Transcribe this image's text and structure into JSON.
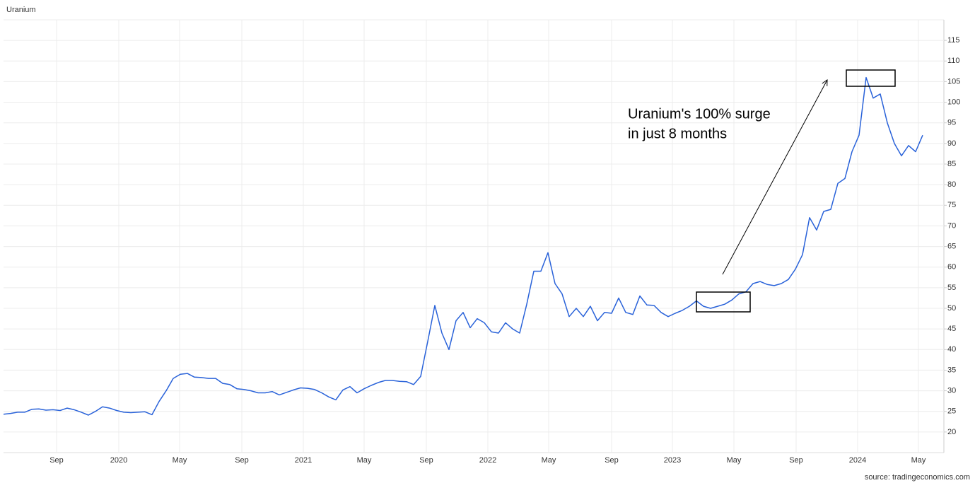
{
  "chart_data": {
    "type": "line",
    "title": "Uranium",
    "source": "source: tradingeconomics.com",
    "annotation": [
      "Uranium's 100% surge",
      "in just 8 months"
    ],
    "series": [
      {
        "name": "Uranium",
        "color": "#2962d9",
        "values": [
          24.3,
          24.5,
          24.8,
          24.8,
          25.5,
          25.6,
          25.3,
          25.4,
          25.2,
          25.8,
          25.4,
          24.8,
          24.1,
          25,
          26.1,
          25.8,
          25.2,
          24.8,
          24.7,
          24.8,
          24.9,
          24.2,
          27.4,
          30,
          33,
          34,
          34.2,
          33.3,
          33.2,
          33,
          33,
          31.8,
          31.5,
          30.5,
          30.3,
          30,
          29.5,
          29.5,
          29.8,
          29,
          29.6,
          30.2,
          30.7,
          30.6,
          30.3,
          29.5,
          28.5,
          27.8,
          30.2,
          31,
          29.5,
          30.5,
          31.3,
          32,
          32.5,
          32.5,
          32.3,
          32.2,
          31.5,
          33.5,
          42,
          50.7,
          44,
          40,
          47,
          49,
          45.3,
          47.5,
          46.5,
          44.3,
          44,
          46.5,
          45,
          44,
          51,
          59,
          59,
          63.5,
          56,
          53.5,
          48,
          50,
          48,
          50.5,
          47,
          49,
          48.8,
          52.5,
          49,
          48.5,
          53,
          50.8,
          50.7,
          49,
          48,
          48.8,
          49.5,
          50.5,
          51.8,
          50.5,
          50,
          50.5,
          51,
          52,
          53.5,
          54,
          56,
          56.5,
          55.8,
          55.5,
          56,
          57,
          59.5,
          63,
          72,
          69,
          73.5,
          74,
          80.3,
          81.5,
          88,
          92,
          106,
          101,
          102,
          95,
          90,
          87,
          89.5,
          88,
          92
        ]
      }
    ],
    "xlim": [
      0,
      133
    ],
    "xticks": [
      {
        "value": 7.5,
        "label": "Sep"
      },
      {
        "value": 16.3,
        "label": "2020"
      },
      {
        "value": 24.9,
        "label": "May"
      },
      {
        "value": 33.7,
        "label": "Sep"
      },
      {
        "value": 42.4,
        "label": "2021"
      },
      {
        "value": 51,
        "label": "May"
      },
      {
        "value": 59.8,
        "label": "Sep"
      },
      {
        "value": 68.5,
        "label": "2022"
      },
      {
        "value": 77.1,
        "label": "May"
      },
      {
        "value": 86,
        "label": "Sep"
      },
      {
        "value": 94.6,
        "label": "2023"
      },
      {
        "value": 103.3,
        "label": "May"
      },
      {
        "value": 112.1,
        "label": "Sep"
      },
      {
        "value": 120.8,
        "label": "2024"
      },
      {
        "value": 129.4,
        "label": "May"
      }
    ],
    "ylim": [
      15,
      120
    ],
    "yticks": [
      20,
      25,
      30,
      35,
      40,
      45,
      50,
      55,
      60,
      65,
      70,
      75,
      80,
      85,
      90,
      95,
      100,
      105,
      110,
      115
    ],
    "grid": true
  }
}
